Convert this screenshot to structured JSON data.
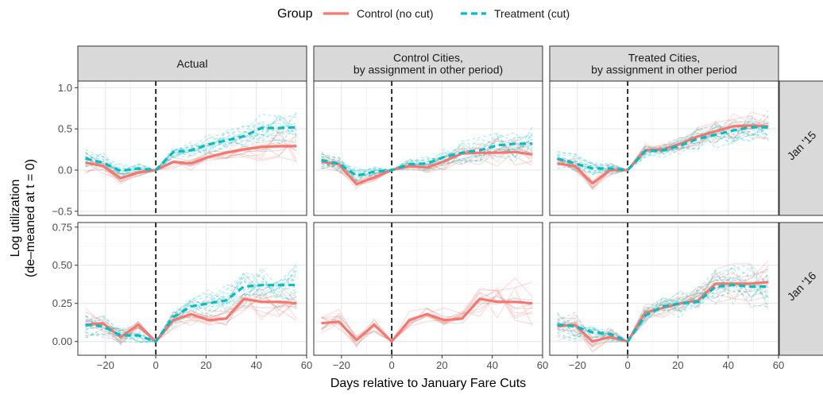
{
  "chart_data": {
    "type": "line",
    "legend": {
      "title": "Group",
      "position": "top",
      "entries": [
        {
          "key": "control",
          "label": "Control (no cut)",
          "color": "#F8766D",
          "dash": "solid"
        },
        {
          "key": "treatment",
          "label": "Treatment (cut)",
          "color": "#00BFC4",
          "dash": "dashed"
        }
      ]
    },
    "xlabel": "Days relative to January Fare Cuts",
    "ylabel_lines": [
      "Log utilization",
      "(de–meaned at t = 0)"
    ],
    "xlim": [
      -31,
      60
    ],
    "xticks": [
      -20,
      0,
      20,
      40,
      60
    ],
    "xtick_labels": [
      "−20",
      "0",
      "20",
      "40",
      "60"
    ],
    "vline_x": 0,
    "columns": [
      {
        "key": "actual",
        "label_lines": [
          "Actual"
        ]
      },
      {
        "key": "control_cities",
        "label_lines": [
          "Control Cities,",
          "by assignment in other period)"
        ]
      },
      {
        "key": "treated_cities",
        "label_lines": [
          "Treated Cities,",
          "by assignment in other period"
        ]
      }
    ],
    "rows": [
      {
        "label": "Jan '15",
        "ylim": [
          -0.55,
          1.08
        ],
        "yticks": [
          -0.5,
          0.0,
          0.5,
          1.0
        ],
        "ytick_labels": [
          "−0.5",
          "0.0",
          "0.5",
          "1.0"
        ]
      },
      {
        "label": "Jan '16",
        "ylim": [
          -0.09,
          0.78
        ],
        "yticks": [
          0.0,
          0.25,
          0.5,
          0.75
        ],
        "ytick_labels": [
          "0.00",
          "0.25",
          "0.50",
          "0.75"
        ]
      }
    ],
    "x": [
      -28,
      -21,
      -14,
      -7,
      0,
      7,
      14,
      21,
      28,
      35,
      42,
      49,
      56
    ],
    "grid": true,
    "panels": [
      {
        "row": 0,
        "col": 0,
        "series": [
          {
            "group": "control",
            "values": [
              0.09,
              0.05,
              -0.1,
              -0.03,
              0.0,
              0.1,
              0.08,
              0.16,
              0.21,
              0.25,
              0.28,
              0.29,
              0.29
            ]
          },
          {
            "group": "treatment",
            "values": [
              0.14,
              0.09,
              -0.01,
              0.02,
              0.0,
              0.22,
              0.24,
              0.31,
              0.36,
              0.41,
              0.51,
              0.51,
              0.52
            ]
          }
        ]
      },
      {
        "row": 0,
        "col": 1,
        "series": [
          {
            "group": "control",
            "values": [
              0.1,
              0.07,
              -0.17,
              -0.09,
              0.0,
              0.05,
              0.03,
              0.11,
              0.2,
              0.21,
              0.21,
              0.22,
              0.19
            ]
          },
          {
            "group": "treatment",
            "values": [
              0.12,
              0.08,
              -0.07,
              -0.02,
              0.0,
              0.07,
              0.08,
              0.16,
              0.21,
              0.24,
              0.3,
              0.32,
              0.32
            ]
          }
        ]
      },
      {
        "row": 0,
        "col": 2,
        "series": [
          {
            "group": "control",
            "values": [
              0.08,
              0.05,
              -0.16,
              0.0,
              0.0,
              0.24,
              0.25,
              0.32,
              0.41,
              0.47,
              0.53,
              0.54,
              0.53
            ]
          },
          {
            "group": "treatment",
            "values": [
              0.14,
              0.08,
              0.02,
              0.02,
              0.0,
              0.23,
              0.24,
              0.3,
              0.38,
              0.43,
              0.48,
              0.52,
              0.52
            ]
          }
        ]
      },
      {
        "row": 1,
        "col": 0,
        "series": [
          {
            "group": "control",
            "values": [
              0.11,
              0.12,
              0.03,
              0.11,
              0.0,
              0.14,
              0.18,
              0.14,
              0.15,
              0.28,
              0.26,
              0.26,
              0.25
            ]
          },
          {
            "group": "treatment",
            "values": [
              0.11,
              0.1,
              0.04,
              0.04,
              0.0,
              0.16,
              0.23,
              0.25,
              0.27,
              0.36,
              0.37,
              0.37,
              0.37
            ]
          }
        ]
      },
      {
        "row": 1,
        "col": 1,
        "series": [
          {
            "group": "control",
            "values": [
              0.12,
              0.13,
              0.01,
              0.11,
              0.0,
              0.14,
              0.18,
              0.14,
              0.15,
              0.28,
              0.26,
              0.26,
              0.25
            ]
          }
        ]
      },
      {
        "row": 1,
        "col": 2,
        "series": [
          {
            "group": "control",
            "values": [
              0.1,
              0.11,
              0.0,
              0.03,
              0.0,
              0.19,
              0.22,
              0.25,
              0.27,
              0.38,
              0.38,
              0.38,
              0.39
            ]
          },
          {
            "group": "treatment",
            "values": [
              0.11,
              0.1,
              0.06,
              0.05,
              0.0,
              0.17,
              0.23,
              0.25,
              0.26,
              0.36,
              0.37,
              0.36,
              0.36
            ]
          }
        ]
      }
    ]
  }
}
